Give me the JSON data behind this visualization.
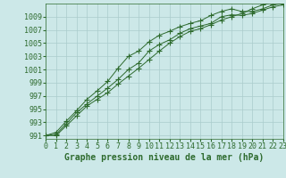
{
  "x": [
    0,
    1,
    2,
    3,
    4,
    5,
    6,
    7,
    8,
    9,
    10,
    11,
    12,
    13,
    14,
    15,
    16,
    17,
    18,
    19,
    20,
    21,
    22,
    23
  ],
  "series": [
    [
      991.0,
      991.5,
      993.2,
      994.8,
      996.5,
      997.8,
      999.2,
      1001.2,
      1003.0,
      1003.8,
      1005.2,
      1006.2,
      1006.8,
      1007.5,
      1008.0,
      1008.4,
      1009.2,
      1009.8,
      1010.2,
      1009.8,
      1009.8,
      1010.2,
      1010.8,
      1011.0
    ],
    [
      991.0,
      991.2,
      992.8,
      994.5,
      995.8,
      997.0,
      998.2,
      999.5,
      1001.0,
      1002.0,
      1003.8,
      1004.8,
      1005.5,
      1006.5,
      1007.2,
      1007.6,
      1008.0,
      1009.0,
      1009.3,
      1009.2,
      1009.5,
      1010.0,
      1010.5,
      1010.8
    ],
    [
      991.0,
      991.0,
      992.5,
      994.0,
      995.5,
      996.5,
      997.5,
      998.8,
      1000.0,
      1001.2,
      1002.5,
      1003.8,
      1005.0,
      1006.0,
      1006.8,
      1007.2,
      1007.8,
      1008.5,
      1009.0,
      1009.5,
      1010.2,
      1010.8,
      1011.2,
      1011.5
    ]
  ],
  "line_color": "#2d6a2d",
  "marker": "+",
  "markersize": 4,
  "background_color": "#cce8e8",
  "grid_color": "#aacccc",
  "text_color": "#2d6a2d",
  "xlabel": "Graphe pression niveau de la mer (hPa)",
  "yticks": [
    991,
    993,
    995,
    997,
    999,
    1001,
    1003,
    1005,
    1007,
    1009
  ],
  "xlim": [
    0,
    23
  ],
  "ylim": [
    990.5,
    1011.0
  ],
  "xticks": [
    0,
    1,
    2,
    3,
    4,
    5,
    6,
    7,
    8,
    9,
    10,
    11,
    12,
    13,
    14,
    15,
    16,
    17,
    18,
    19,
    20,
    21,
    22,
    23
  ],
  "tick_fontsize": 6,
  "label_fontsize": 7
}
